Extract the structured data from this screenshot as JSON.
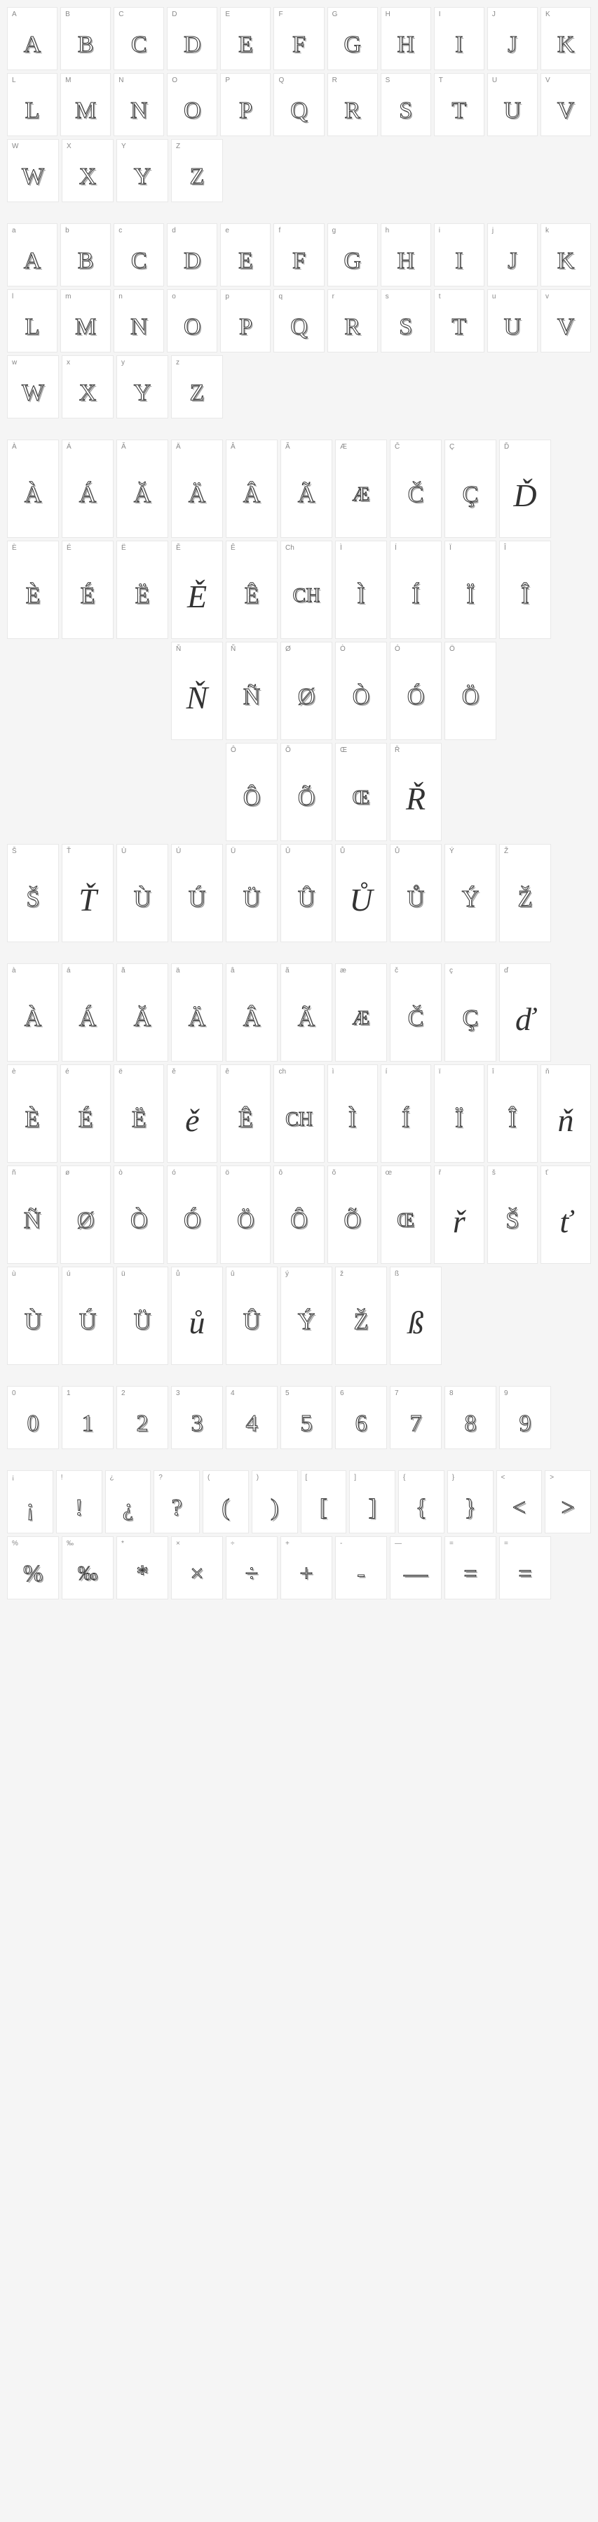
{
  "sections": [
    {
      "rows": [
        [
          {
            "label": "A",
            "glyph": "A",
            "style": "outline"
          },
          {
            "label": "B",
            "glyph": "B",
            "style": "outline"
          },
          {
            "label": "C",
            "glyph": "C",
            "style": "outline"
          },
          {
            "label": "D",
            "glyph": "D",
            "style": "outline"
          },
          {
            "label": "E",
            "glyph": "E",
            "style": "outline"
          },
          {
            "label": "F",
            "glyph": "F",
            "style": "outline"
          },
          {
            "label": "G",
            "glyph": "G",
            "style": "outline"
          },
          {
            "label": "H",
            "glyph": "H",
            "style": "outline"
          },
          {
            "label": "I",
            "glyph": "I",
            "style": "outline"
          },
          {
            "label": "J",
            "glyph": "J",
            "style": "outline"
          },
          {
            "label": "K",
            "glyph": "K",
            "style": "outline"
          }
        ],
        [
          {
            "label": "L",
            "glyph": "L",
            "style": "outline"
          },
          {
            "label": "M",
            "glyph": "M",
            "style": "outline"
          },
          {
            "label": "N",
            "glyph": "N",
            "style": "outline"
          },
          {
            "label": "O",
            "glyph": "O",
            "style": "outline"
          },
          {
            "label": "P",
            "glyph": "P",
            "style": "outline"
          },
          {
            "label": "Q",
            "glyph": "Q",
            "style": "outline"
          },
          {
            "label": "R",
            "glyph": "R",
            "style": "outline"
          },
          {
            "label": "S",
            "glyph": "S",
            "style": "outline"
          },
          {
            "label": "T",
            "glyph": "T",
            "style": "outline"
          },
          {
            "label": "U",
            "glyph": "U",
            "style": "outline"
          },
          {
            "label": "V",
            "glyph": "V",
            "style": "outline"
          }
        ],
        [
          {
            "label": "W",
            "glyph": "W",
            "style": "outline"
          },
          {
            "label": "X",
            "glyph": "X",
            "style": "outline"
          },
          {
            "label": "Y",
            "glyph": "Y",
            "style": "outline"
          },
          {
            "label": "Z",
            "glyph": "Z",
            "style": "outline"
          }
        ]
      ]
    },
    {
      "rows": [
        [
          {
            "label": "a",
            "glyph": "A",
            "style": "outline"
          },
          {
            "label": "b",
            "glyph": "B",
            "style": "outline"
          },
          {
            "label": "c",
            "glyph": "C",
            "style": "outline"
          },
          {
            "label": "d",
            "glyph": "D",
            "style": "outline"
          },
          {
            "label": "e",
            "glyph": "E",
            "style": "outline"
          },
          {
            "label": "f",
            "glyph": "F",
            "style": "outline"
          },
          {
            "label": "g",
            "glyph": "G",
            "style": "outline"
          },
          {
            "label": "h",
            "glyph": "H",
            "style": "outline"
          },
          {
            "label": "i",
            "glyph": "I",
            "style": "outline"
          },
          {
            "label": "j",
            "glyph": "J",
            "style": "outline"
          },
          {
            "label": "k",
            "glyph": "K",
            "style": "outline"
          }
        ],
        [
          {
            "label": "l",
            "glyph": "L",
            "style": "outline"
          },
          {
            "label": "m",
            "glyph": "M",
            "style": "outline"
          },
          {
            "label": "n",
            "glyph": "N",
            "style": "outline"
          },
          {
            "label": "o",
            "glyph": "O",
            "style": "outline"
          },
          {
            "label": "p",
            "glyph": "P",
            "style": "outline"
          },
          {
            "label": "q",
            "glyph": "Q",
            "style": "outline"
          },
          {
            "label": "r",
            "glyph": "R",
            "style": "outline"
          },
          {
            "label": "s",
            "glyph": "S",
            "style": "outline"
          },
          {
            "label": "t",
            "glyph": "T",
            "style": "outline"
          },
          {
            "label": "u",
            "glyph": "U",
            "style": "outline"
          },
          {
            "label": "v",
            "glyph": "V",
            "style": "outline"
          }
        ],
        [
          {
            "label": "w",
            "glyph": "W",
            "style": "outline"
          },
          {
            "label": "x",
            "glyph": "X",
            "style": "outline"
          },
          {
            "label": "y",
            "glyph": "Y",
            "style": "outline"
          },
          {
            "label": "z",
            "glyph": "Z",
            "style": "outline"
          }
        ]
      ]
    },
    {
      "tall": true,
      "rows": [
        [
          {
            "label": "À",
            "glyph": "À",
            "style": "outline"
          },
          {
            "label": "Á",
            "glyph": "Á",
            "style": "outline"
          },
          {
            "label": "Ă",
            "glyph": "Ă",
            "style": "outline"
          },
          {
            "label": "Ä",
            "glyph": "Ä",
            "style": "outline"
          },
          {
            "label": "Â",
            "glyph": "Â",
            "style": "outline"
          },
          {
            "label": "Ã",
            "glyph": "Ã",
            "style": "outline"
          },
          {
            "label": "Æ",
            "glyph": "Æ",
            "style": "outline small"
          },
          {
            "label": "Č",
            "glyph": "Č",
            "style": "outline"
          },
          {
            "label": "Ç",
            "glyph": "Ç",
            "style": "outline"
          },
          {
            "label": "Ď",
            "glyph": "Ď",
            "style": "script"
          }
        ],
        [
          {
            "label": "È",
            "glyph": "È",
            "style": "outline"
          },
          {
            "label": "É",
            "glyph": "É",
            "style": "outline"
          },
          {
            "label": "Ë",
            "glyph": "Ë",
            "style": "outline"
          },
          {
            "label": "Ě",
            "glyph": "Ě",
            "style": "script"
          },
          {
            "label": "Ê",
            "glyph": "Ê",
            "style": "outline"
          },
          {
            "label": "Ch",
            "glyph": "CH",
            "style": "outline small"
          },
          {
            "label": "Ì",
            "glyph": "Ì",
            "style": "outline"
          },
          {
            "label": "Í",
            "glyph": "Í",
            "style": "outline"
          },
          {
            "label": "Ï",
            "glyph": "Ï",
            "style": "outline"
          },
          {
            "label": "Î",
            "glyph": "Î",
            "style": "outline"
          }
        ],
        [
          {
            "empty": true
          },
          {
            "empty": true
          },
          {
            "empty": true
          },
          {
            "label": "Ň",
            "glyph": "Ň",
            "style": "script"
          },
          {
            "label": "Ñ",
            "glyph": "Ñ",
            "style": "outline"
          },
          {
            "label": "Ø",
            "glyph": "Ø",
            "style": "outline"
          },
          {
            "label": "Ò",
            "glyph": "Ò",
            "style": "outline"
          },
          {
            "label": "Ó",
            "glyph": "Ó",
            "style": "outline"
          },
          {
            "label": "Ö",
            "glyph": "Ö",
            "style": "outline"
          }
        ],
        [
          {
            "empty": true
          },
          {
            "empty": true
          },
          {
            "empty": true
          },
          {
            "empty": true
          },
          {
            "label": "Ô",
            "glyph": "Ô",
            "style": "outline"
          },
          {
            "label": "Õ",
            "glyph": "Õ",
            "style": "outline"
          },
          {
            "label": "Œ",
            "glyph": "Œ",
            "style": "outline small"
          },
          {
            "label": "Ř",
            "glyph": "Ř",
            "style": "script"
          }
        ],
        [
          {
            "label": "Š",
            "glyph": "Š",
            "style": "outline"
          },
          {
            "label": "Ť",
            "glyph": "Ť",
            "style": "script"
          },
          {
            "label": "Ù",
            "glyph": "Ù",
            "style": "outline"
          },
          {
            "label": "Ú",
            "glyph": "Ú",
            "style": "outline"
          },
          {
            "label": "Ü",
            "glyph": "Ü",
            "style": "outline"
          },
          {
            "label": "Û",
            "glyph": "Û",
            "style": "outline"
          },
          {
            "label": "Ů",
            "glyph": "Ů",
            "style": "script"
          },
          {
            "label": "Ů",
            "glyph": "Ů",
            "style": "outline"
          },
          {
            "label": "Ý",
            "glyph": "Ý",
            "style": "outline"
          },
          {
            "label": "Ž",
            "glyph": "Ž",
            "style": "outline"
          }
        ]
      ]
    },
    {
      "tall": true,
      "rows": [
        [
          {
            "label": "à",
            "glyph": "À",
            "style": "outline"
          },
          {
            "label": "á",
            "glyph": "Á",
            "style": "outline"
          },
          {
            "label": "ă",
            "glyph": "Ă",
            "style": "outline"
          },
          {
            "label": "ä",
            "glyph": "Ä",
            "style": "outline"
          },
          {
            "label": "â",
            "glyph": "Â",
            "style": "outline"
          },
          {
            "label": "ã",
            "glyph": "Ã",
            "style": "outline"
          },
          {
            "label": "æ",
            "glyph": "Æ",
            "style": "outline small"
          },
          {
            "label": "č",
            "glyph": "Č",
            "style": "outline"
          },
          {
            "label": "ç",
            "glyph": "Ç",
            "style": "outline"
          },
          {
            "label": "ď",
            "glyph": "ď",
            "style": "script"
          }
        ],
        [
          {
            "label": "è",
            "glyph": "È",
            "style": "outline"
          },
          {
            "label": "é",
            "glyph": "É",
            "style": "outline"
          },
          {
            "label": "ë",
            "glyph": "Ë",
            "style": "outline"
          },
          {
            "label": "ě",
            "glyph": "ě",
            "style": "script"
          },
          {
            "label": "ê",
            "glyph": "Ê",
            "style": "outline"
          },
          {
            "label": "ch",
            "glyph": "CH",
            "style": "outline small"
          },
          {
            "label": "ì",
            "glyph": "Ì",
            "style": "outline"
          },
          {
            "label": "í",
            "glyph": "Í",
            "style": "outline"
          },
          {
            "label": "ï",
            "glyph": "Ï",
            "style": "outline"
          },
          {
            "label": "î",
            "glyph": "Î",
            "style": "outline"
          },
          {
            "label": "ň",
            "glyph": "ň",
            "style": "script"
          }
        ],
        [
          {
            "label": "ñ",
            "glyph": "Ñ",
            "style": "outline"
          },
          {
            "label": "ø",
            "glyph": "Ø",
            "style": "outline"
          },
          {
            "label": "ò",
            "glyph": "Ò",
            "style": "outline"
          },
          {
            "label": "ó",
            "glyph": "Ó",
            "style": "outline"
          },
          {
            "label": "ö",
            "glyph": "Ö",
            "style": "outline"
          },
          {
            "label": "ô",
            "glyph": "Ô",
            "style": "outline"
          },
          {
            "label": "õ",
            "glyph": "Õ",
            "style": "outline"
          },
          {
            "label": "œ",
            "glyph": "Œ",
            "style": "outline small"
          },
          {
            "label": "ř",
            "glyph": "ř",
            "style": "script"
          },
          {
            "label": "š",
            "glyph": "Š",
            "style": "outline"
          },
          {
            "label": "ť",
            "glyph": "ť",
            "style": "script"
          }
        ],
        [
          {
            "label": "ù",
            "glyph": "Ù",
            "style": "outline"
          },
          {
            "label": "ú",
            "glyph": "Ú",
            "style": "outline"
          },
          {
            "label": "ü",
            "glyph": "Ü",
            "style": "outline"
          },
          {
            "label": "ů",
            "glyph": "ů",
            "style": "script"
          },
          {
            "label": "û",
            "glyph": "Û",
            "style": "outline"
          },
          {
            "label": "ý",
            "glyph": "Ý",
            "style": "outline"
          },
          {
            "label": "ž",
            "glyph": "Ž",
            "style": "outline"
          },
          {
            "label": "ß",
            "glyph": "ß",
            "style": "script"
          }
        ]
      ]
    },
    {
      "rows": [
        [
          {
            "label": "0",
            "glyph": "0",
            "style": "outline"
          },
          {
            "label": "1",
            "glyph": "1",
            "style": "outline"
          },
          {
            "label": "2",
            "glyph": "2",
            "style": "outline"
          },
          {
            "label": "3",
            "glyph": "3",
            "style": "outline"
          },
          {
            "label": "4",
            "glyph": "4",
            "style": "outline"
          },
          {
            "label": "5",
            "glyph": "5",
            "style": "outline"
          },
          {
            "label": "6",
            "glyph": "6",
            "style": "outline"
          },
          {
            "label": "7",
            "glyph": "7",
            "style": "outline"
          },
          {
            "label": "8",
            "glyph": "8",
            "style": "outline"
          },
          {
            "label": "9",
            "glyph": "9",
            "style": "outline"
          }
        ]
      ]
    },
    {
      "rows": [
        [
          {
            "label": "¡",
            "glyph": "¡",
            "style": "outline"
          },
          {
            "label": "!",
            "glyph": "!",
            "style": "outline"
          },
          {
            "label": "¿",
            "glyph": "¿",
            "style": "outline"
          },
          {
            "label": "?",
            "glyph": "?",
            "style": "outline"
          },
          {
            "label": "(",
            "glyph": "(",
            "style": "outline"
          },
          {
            "label": ")",
            "glyph": ")",
            "style": "outline"
          },
          {
            "label": "[",
            "glyph": "[",
            "style": "outline"
          },
          {
            "label": "]",
            "glyph": "]",
            "style": "outline"
          },
          {
            "label": "{",
            "glyph": "{",
            "style": "outline"
          },
          {
            "label": "}",
            "glyph": "}",
            "style": "outline"
          },
          {
            "label": "<",
            "glyph": "<",
            "style": "outline"
          },
          {
            "label": ">",
            "glyph": ">",
            "style": "outline"
          }
        ],
        [
          {
            "label": "%",
            "glyph": "%",
            "style": "outline"
          },
          {
            "label": "‰",
            "glyph": "‰",
            "style": "outline small"
          },
          {
            "label": "*",
            "glyph": "*",
            "style": "outline"
          },
          {
            "label": "×",
            "glyph": "×",
            "style": "outline"
          },
          {
            "label": "÷",
            "glyph": "÷",
            "style": "outline"
          },
          {
            "label": "+",
            "glyph": "+",
            "style": "outline"
          },
          {
            "label": "-",
            "glyph": "-",
            "style": "outline"
          },
          {
            "label": "—",
            "glyph": "—",
            "style": "outline"
          },
          {
            "label": "=",
            "glyph": "=",
            "style": "outline"
          },
          {
            "label": "=",
            "glyph": "=",
            "style": "outline"
          }
        ]
      ]
    }
  ]
}
